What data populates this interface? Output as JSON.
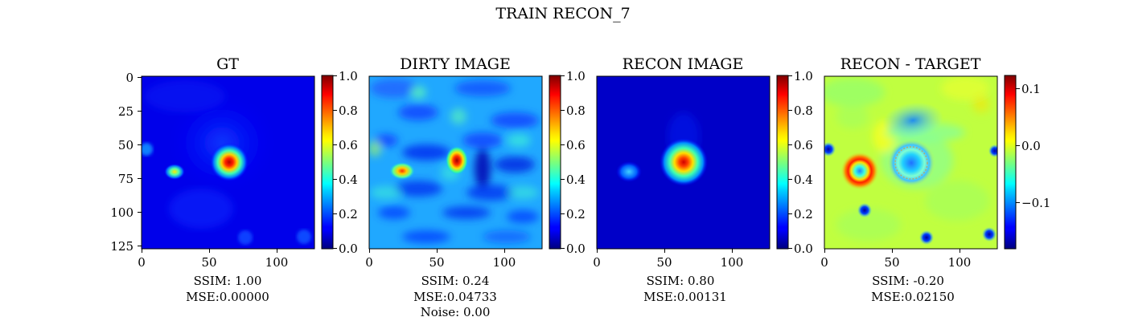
{
  "figure": {
    "title": "TRAIN RECON_7"
  },
  "colormap": "jet",
  "chart_data": [
    {
      "type": "heatmap",
      "title": "GT",
      "x_ticks": [
        "0",
        "50",
        "100"
      ],
      "y_ticks": [
        "0",
        "25",
        "50",
        "75",
        "100",
        "125"
      ],
      "xlim": [
        0,
        128
      ],
      "ylim": [
        128,
        0
      ],
      "colorbar": {
        "range": [
          0,
          1
        ],
        "ticks": [
          "0.0",
          "0.2",
          "0.4",
          "0.6",
          "0.8",
          "1.0"
        ]
      },
      "caption": [
        "SSIM: 1.00",
        "MSE:0.00000"
      ],
      "features": [
        {
          "kind": "blob",
          "x": 64,
          "y": 64,
          "r": 6,
          "value": 1.0
        },
        {
          "kind": "blob",
          "x": 24,
          "y": 71,
          "r": 4,
          "value": 0.6
        },
        {
          "kind": "halo",
          "x": 60,
          "y": 50,
          "r": 28,
          "value": 0.2
        }
      ]
    },
    {
      "type": "heatmap",
      "title": "DIRTY IMAGE",
      "x_ticks": [
        "0",
        "50",
        "100"
      ],
      "xlim": [
        0,
        128
      ],
      "ylim": [
        128,
        0
      ],
      "colorbar": {
        "range": [
          0,
          1
        ],
        "ticks": [
          "0.0",
          "0.2",
          "0.4",
          "0.6",
          "0.8",
          "1.0"
        ]
      },
      "caption": [
        "SSIM: 0.24",
        "MSE:0.04733",
        "Noise: 0.00"
      ],
      "features": [
        {
          "kind": "blob",
          "x": 64,
          "y": 63,
          "r": 6,
          "value": 0.95
        },
        {
          "kind": "blob",
          "x": 24,
          "y": 70,
          "r": 5,
          "value": 0.75
        },
        {
          "kind": "background",
          "value": 0.35
        }
      ]
    },
    {
      "type": "heatmap",
      "title": "RECON IMAGE",
      "x_ticks": [
        "0",
        "50",
        "100"
      ],
      "xlim": [
        0,
        128
      ],
      "ylim": [
        128,
        0
      ],
      "colorbar": {
        "range": [
          0,
          1
        ],
        "ticks": [
          "0.0",
          "0.2",
          "0.4",
          "0.6",
          "0.8",
          "1.0"
        ]
      },
      "caption": [
        "SSIM: 0.80",
        "MSE:0.00131"
      ],
      "features": [
        {
          "kind": "blob",
          "x": 64,
          "y": 64,
          "r": 10,
          "value": 0.9
        },
        {
          "kind": "blob",
          "x": 24,
          "y": 71,
          "r": 6,
          "value": 0.35
        }
      ]
    },
    {
      "type": "heatmap",
      "title": "RECON - TARGET",
      "x_ticks": [
        "0",
        "50",
        "100"
      ],
      "xlim": [
        0,
        128
      ],
      "ylim": [
        128,
        0
      ],
      "colorbar": {
        "range": [
          -0.18,
          0.12
        ],
        "ticks": [
          "0.1",
          "0.0",
          "−0.1"
        ],
        "tick_values": [
          0.1,
          0.0,
          -0.1
        ]
      },
      "caption": [
        "SSIM: -0.20",
        "MSE:0.02150"
      ],
      "features": [
        {
          "kind": "ring",
          "x": 26,
          "y": 71,
          "r": 9,
          "value": 0.12
        },
        {
          "kind": "ring",
          "x": 64,
          "y": 64,
          "r": 14,
          "value": -0.08
        },
        {
          "kind": "patch",
          "x": 68,
          "y": 35,
          "r": 14,
          "value": -0.12
        }
      ]
    }
  ]
}
